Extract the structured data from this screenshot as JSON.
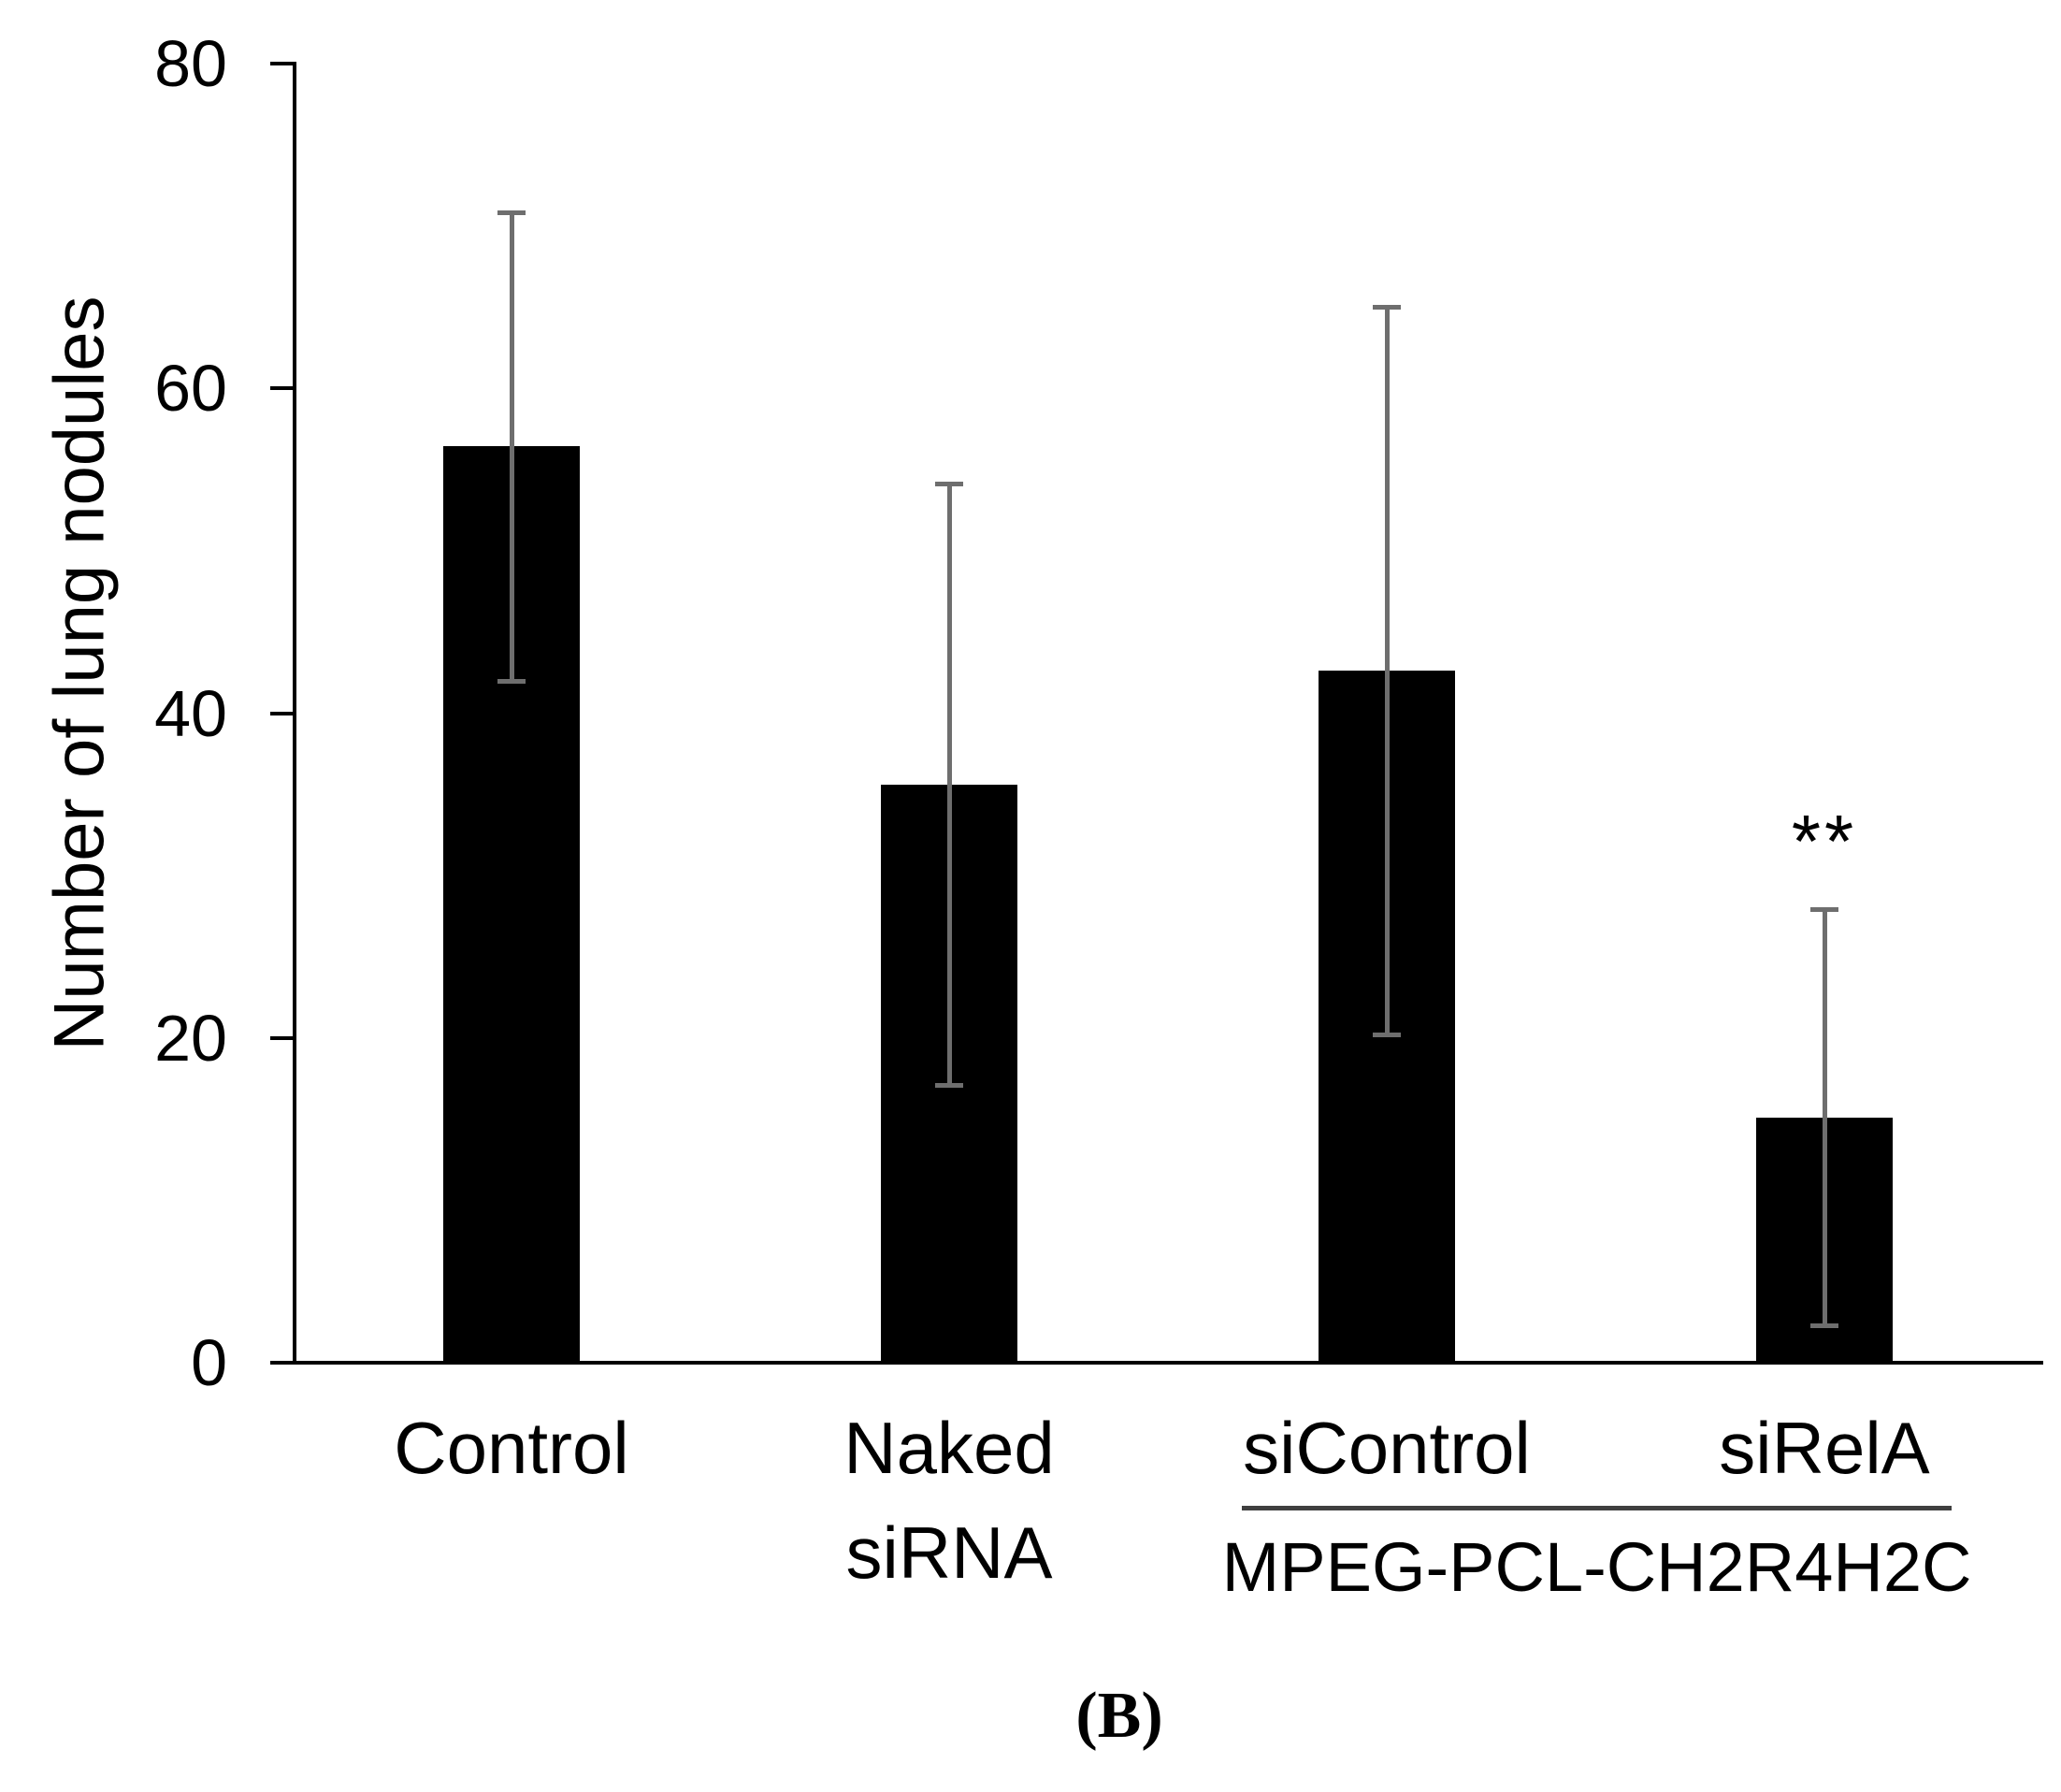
{
  "figure_label": "(B)",
  "chart_data": {
    "type": "bar",
    "title": "",
    "xlabel": "",
    "ylabel": "Number of lung nodules",
    "ylim": [
      0,
      80
    ],
    "yticks": [
      0,
      20,
      40,
      60,
      80
    ],
    "grid": false,
    "legend": "none",
    "bar_color": "#000000",
    "error_bar_color": "#6e6e6e",
    "categories": [
      "Control",
      "Naked\nsiRNA",
      "siControl",
      "siRelA"
    ],
    "values": [
      56.3,
      35.5,
      42.5,
      15.0
    ],
    "errors": [
      14.4,
      18.5,
      22.4,
      12.8
    ],
    "annotations": [
      {
        "text": "**",
        "category_index": 3,
        "position": "above-error-bar"
      }
    ],
    "group_annotation": {
      "label": "MPEG-PCL-CH2R4H2C",
      "members": [
        "siControl",
        "siRelA"
      ]
    }
  }
}
